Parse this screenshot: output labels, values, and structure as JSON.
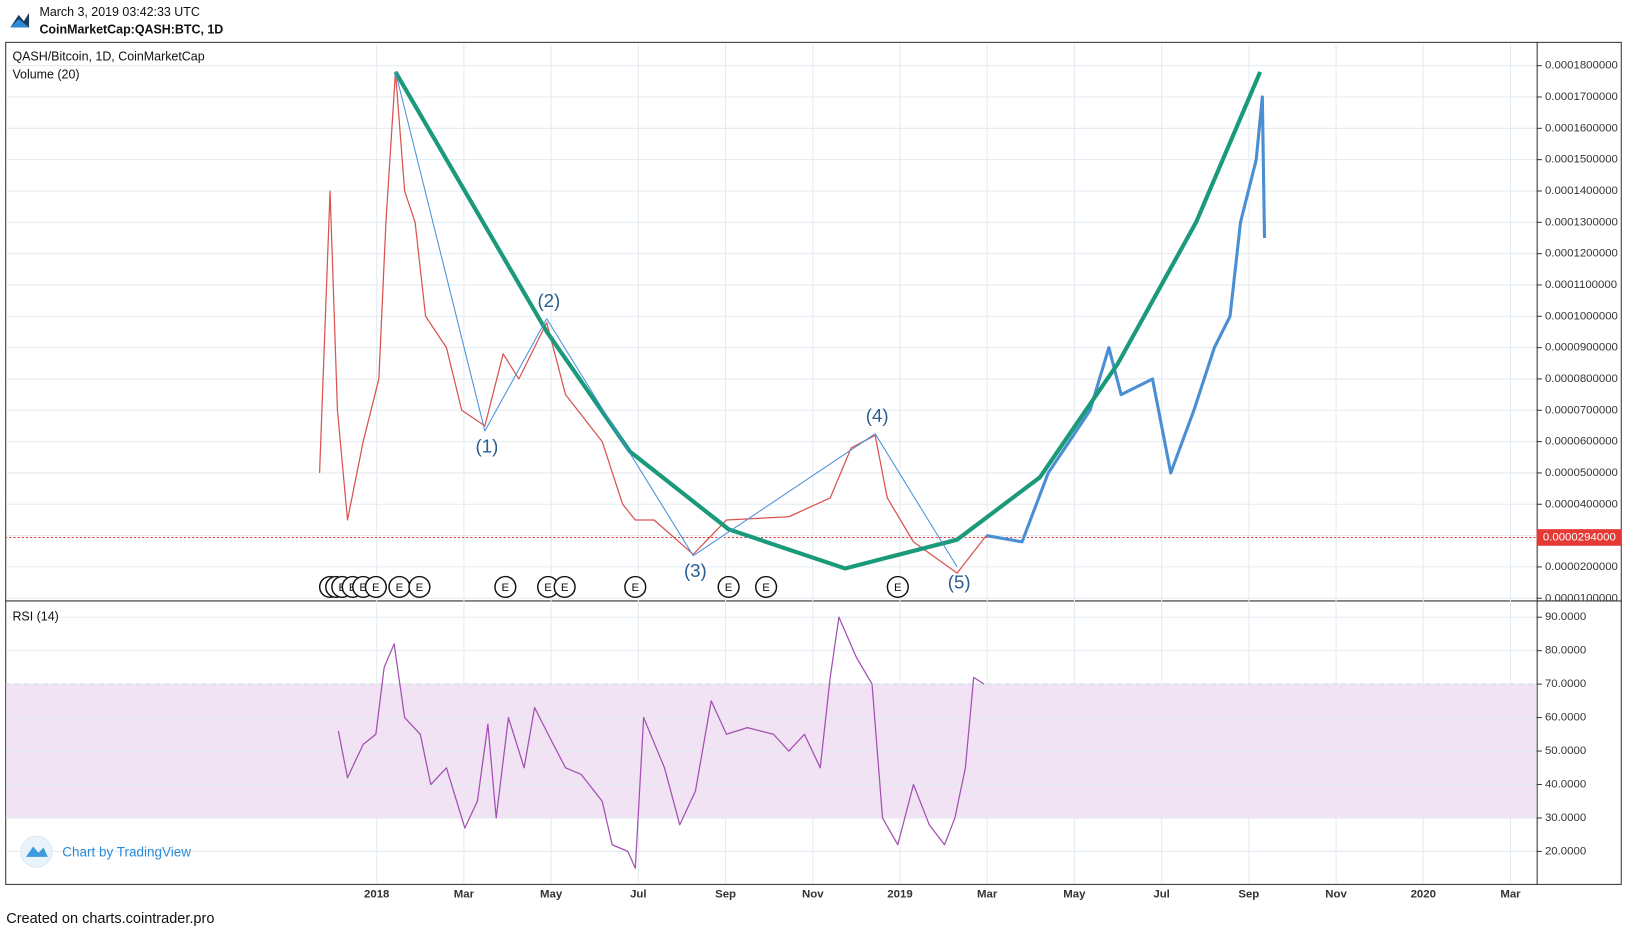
{
  "header": {
    "timestamp": "March 3, 2019 03:42:33 UTC",
    "symbol": "CoinMarketCap:QASH:BTC, 1D"
  },
  "footer": "Created on charts.cointrader.pro",
  "watermark": "Chart by TradingView",
  "chart_data": [
    {
      "type": "line",
      "title": "QASH/Bitcoin, 1D, CoinMarketCap",
      "subtitle": "Volume (20)",
      "xlim": [
        -8.52,
        26.6
      ],
      "xticks": [
        {
          "value": 0,
          "label": "2018"
        },
        {
          "value": 2,
          "label": "Mar"
        },
        {
          "value": 4,
          "label": "May"
        },
        {
          "value": 6,
          "label": "Jul"
        },
        {
          "value": 8,
          "label": "Sep"
        },
        {
          "value": 10,
          "label": "Nov"
        },
        {
          "value": 12,
          "label": "2019"
        },
        {
          "value": 14,
          "label": "Mar"
        },
        {
          "value": 16,
          "label": "May"
        },
        {
          "value": 18,
          "label": "Jul"
        },
        {
          "value": 20,
          "label": "Sep"
        },
        {
          "value": 22,
          "label": "Nov"
        },
        {
          "value": 24,
          "label": "2020"
        },
        {
          "value": 26,
          "label": "Mar"
        }
      ],
      "ylim": [
        9.3e-06,
        0.0001876
      ],
      "yticks": [
        {
          "value": 1e-05,
          "label": "0.0000100000"
        },
        {
          "value": 2e-05,
          "label": "0.0000200000"
        },
        {
          "value": 3e-05,
          "label": "0.0000300000"
        },
        {
          "value": 4e-05,
          "label": "0.0000400000"
        },
        {
          "value": 5e-05,
          "label": "0.0000500000"
        },
        {
          "value": 6e-05,
          "label": "0.0000600000"
        },
        {
          "value": 7e-05,
          "label": "0.0000700000"
        },
        {
          "value": 8e-05,
          "label": "0.0000800000"
        },
        {
          "value": 9e-05,
          "label": "0.0000900000"
        },
        {
          "value": 0.0001,
          "label": "0.0001000000"
        },
        {
          "value": 0.00011,
          "label": "0.0001100000"
        },
        {
          "value": 0.00012,
          "label": "0.0001200000"
        },
        {
          "value": 0.00013,
          "label": "0.0001300000"
        },
        {
          "value": 0.00014,
          "label": "0.0001400000"
        },
        {
          "value": 0.00015,
          "label": "0.0001500000"
        },
        {
          "value": 0.00016,
          "label": "0.0001600000"
        },
        {
          "value": 0.00017,
          "label": "0.0001700000"
        },
        {
          "value": 0.00018,
          "label": "0.0001800000"
        }
      ],
      "grid": true,
      "current_price": {
        "value": 2.94e-05,
        "label": "0.0000294000",
        "color": "#e53935"
      },
      "series": [
        {
          "color": "#d9534f",
          "width": 1.2,
          "x": [
            -1.31,
            -1.07,
            -0.9,
            -0.67,
            -0.31,
            0.05,
            0.21,
            0.43,
            0.64,
            0.88,
            1.12,
            1.6,
            1.95,
            2.48,
            2.9,
            3.26,
            3.9,
            4.33,
            5.17,
            5.64,
            5.93,
            6.36,
            7.26,
            8.02,
            9.45,
            10.4,
            10.88,
            11.43,
            11.71,
            12.31,
            13.31,
            13.98
          ],
          "values": [
            5e-05,
            0.00014,
            7e-05,
            3.5e-05,
            6e-05,
            8e-05,
            0.00013,
            0.000178,
            0.00014,
            0.00013,
            0.0001,
            9e-05,
            7e-05,
            6.5e-05,
            8.8e-05,
            8e-05,
            9.8e-05,
            7.5e-05,
            6e-05,
            4e-05,
            3.5e-05,
            3.5e-05,
            2.4e-05,
            3.5e-05,
            3.6e-05,
            4.2e-05,
            5.8e-05,
            6.2e-05,
            4.2e-05,
            2.8e-05,
            1.8e-05,
            3e-05
          ]
        },
        {
          "color": "#4a8fd4",
          "width": 3,
          "x": [
            13.98,
            14.8,
            15.4,
            15.88,
            16.36,
            16.79,
            17.07,
            17.79,
            18.21,
            18.74,
            19.21,
            19.57,
            19.81,
            20.17,
            20.31,
            20.36
          ],
          "values": [
            3e-05,
            2.8e-05,
            5e-05,
            6e-05,
            7e-05,
            9e-05,
            7.5e-05,
            8e-05,
            5e-05,
            7e-05,
            9e-05,
            0.0001,
            0.00013,
            0.00015,
            0.00017,
            0.000125
          ]
        },
        {
          "color": "#1a9a7a",
          "width": 4,
          "x": [
            0.43,
            3.9,
            5.81,
            8.07,
            10.74,
            13.31,
            15.21,
            17.0,
            18.79,
            20.26
          ],
          "values": [
            0.000178,
            9.51e-05,
            5.68e-05,
            3.2e-05,
            1.95e-05,
            2.87e-05,
            4.86e-05,
            8.5e-05,
            0.00013,
            0.000178
          ]
        },
        {
          "color": "#4a90d9",
          "width": 1,
          "x": [
            0.43,
            2.48,
            3.9,
            7.26,
            11.43,
            13.31
          ],
          "values": [
            0.000178,
            6.34e-05,
            9.92e-05,
            2.36e-05,
            6.25e-05,
            2e-05
          ]
        }
      ],
      "wave_labels": [
        "(1)",
        "(2)",
        "(3)",
        "(4)",
        "(5)"
      ],
      "earnings_markers": {
        "label": "E",
        "x": [
          -1.07,
          -0.93,
          -0.79,
          -0.55,
          -0.31,
          -0.02,
          0.52,
          0.98,
          2.95,
          3.93,
          4.31,
          5.93,
          8.07,
          8.93,
          11.95
        ]
      }
    },
    {
      "type": "line",
      "title": "RSI (14)",
      "ylim": [
        10.3,
        94.7
      ],
      "yticks": [
        {
          "value": 20,
          "label": "20.0000"
        },
        {
          "value": 30,
          "label": "30.0000"
        },
        {
          "value": 40,
          "label": "40.0000"
        },
        {
          "value": 50,
          "label": "50.0000"
        },
        {
          "value": 60,
          "label": "60.0000"
        },
        {
          "value": 70,
          "label": "70.0000"
        },
        {
          "value": 80,
          "label": "80.0000"
        },
        {
          "value": 90,
          "label": "90.0000"
        }
      ],
      "bands": [
        30,
        70
      ],
      "band_color": "#f1e3f3",
      "series": [
        {
          "color": "#a34fb3",
          "width": 1.2,
          "x": [
            -0.88,
            -0.67,
            -0.31,
            -0.02,
            0.17,
            0.4,
            0.64,
            1.0,
            1.24,
            1.6,
            2.02,
            2.31,
            2.55,
            2.74,
            3.02,
            3.38,
            3.62,
            3.93,
            4.33,
            4.69,
            5.17,
            5.4,
            5.76,
            5.93,
            6.12,
            6.6,
            6.95,
            7.31,
            7.67,
            8.02,
            8.5,
            9.1,
            9.45,
            9.81,
            10.17,
            10.4,
            10.6,
            11.0,
            11.36,
            11.6,
            11.95,
            12.31,
            12.67,
            13.02,
            13.26,
            13.5,
            13.69,
            13.93
          ],
          "values": [
            56,
            42,
            52,
            55,
            75,
            82,
            60,
            55,
            40,
            45,
            27,
            35,
            58,
            30,
            60,
            45,
            63,
            55,
            45,
            43,
            35,
            22,
            20,
            15,
            60,
            45,
            28,
            38,
            65,
            55,
            57,
            55,
            50,
            55,
            45,
            72,
            90,
            78,
            70,
            30,
            22,
            40,
            28,
            22,
            30,
            45,
            72,
            70
          ]
        }
      ]
    }
  ]
}
